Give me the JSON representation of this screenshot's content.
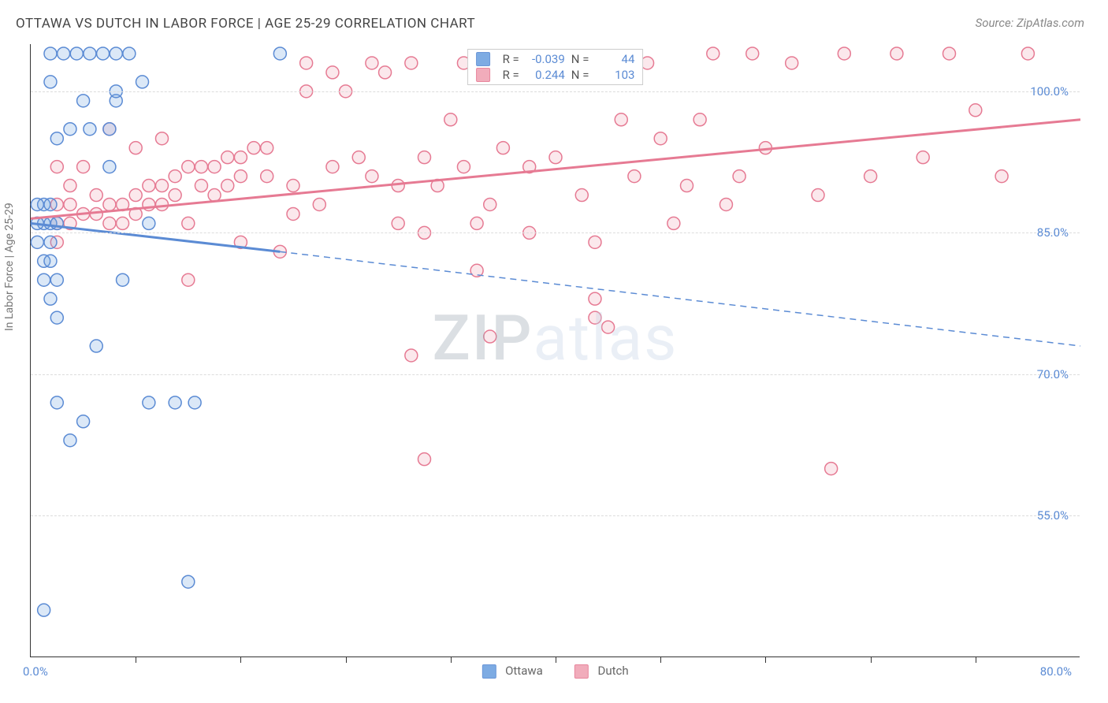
{
  "title": "OTTAWA VS DUTCH IN LABOR FORCE | AGE 25-29 CORRELATION CHART",
  "source": "Source: ZipAtlas.com",
  "watermark": {
    "part1": "ZIP",
    "part2": "atlas"
  },
  "ylabel": "In Labor Force | Age 25-29",
  "legend": {
    "series1": "Ottawa",
    "series2": "Dutch"
  },
  "stats": {
    "series1": {
      "R_label": "R =",
      "R": "-0.039",
      "N_label": "N =",
      "N": "44"
    },
    "series2": {
      "R_label": "R =",
      "R": "0.244",
      "N_label": "N =",
      "N": "103"
    }
  },
  "chart": {
    "type": "scatter-correlation",
    "x_min": 0.0,
    "x_max": 80.0,
    "y_min": 40.0,
    "y_max": 105.0,
    "x_origin_label": "0.0%",
    "x_max_label": "80.0%",
    "y_ticks": [
      55.0,
      70.0,
      85.0,
      100.0
    ],
    "y_tick_labels": [
      "55.0%",
      "70.0%",
      "85.0%",
      "100.0%"
    ],
    "x_minor_ticks": [
      8,
      16,
      24,
      32,
      40,
      48,
      56,
      64,
      72
    ],
    "marker_radius": 8,
    "marker_fill_opacity": 0.25,
    "background_color": "#ffffff",
    "grid_color": "#dcdcdc",
    "axis_color": "#333333",
    "text_color": "#5b8bd4",
    "series": {
      "ottawa": {
        "color": "#6fa3e0",
        "stroke": "#5b8bd4",
        "trend": {
          "x1": 0,
          "y1": 86.0,
          "x2": 19,
          "y2": 83.0,
          "width": 3,
          "dash_from_x": 19,
          "dash_to_x": 80,
          "dash_y": 73.0
        },
        "points": [
          [
            1.5,
            104
          ],
          [
            2.5,
            104
          ],
          [
            3.5,
            104
          ],
          [
            4.5,
            104
          ],
          [
            5.5,
            104
          ],
          [
            6.5,
            104
          ],
          [
            7.5,
            104
          ],
          [
            19,
            104
          ],
          [
            2,
            95
          ],
          [
            4,
            99
          ],
          [
            6.5,
            99
          ],
          [
            1.5,
            101
          ],
          [
            8.5,
            101
          ],
          [
            3,
            96
          ],
          [
            4.5,
            96
          ],
          [
            6,
            96
          ],
          [
            1,
            88
          ],
          [
            1.5,
            88
          ],
          [
            1,
            86
          ],
          [
            1.5,
            86
          ],
          [
            2,
            86
          ],
          [
            1,
            82
          ],
          [
            1.5,
            82
          ],
          [
            1,
            80
          ],
          [
            2,
            80
          ],
          [
            1.5,
            84
          ],
          [
            1.5,
            78
          ],
          [
            2,
            76
          ],
          [
            2,
            67
          ],
          [
            4,
            65
          ],
          [
            9,
            67
          ],
          [
            11,
            67
          ],
          [
            12.5,
            67
          ],
          [
            7,
            80
          ],
          [
            6.5,
            100
          ],
          [
            9,
            86
          ],
          [
            5,
            73
          ],
          [
            6,
            92
          ],
          [
            3,
            63
          ],
          [
            12,
            48
          ],
          [
            1,
            45
          ],
          [
            0.5,
            86
          ],
          [
            0.5,
            88
          ],
          [
            0.5,
            84
          ]
        ]
      },
      "dutch": {
        "color": "#f0a4b4",
        "stroke": "#e67a93",
        "trend": {
          "x1": 0,
          "y1": 86.5,
          "x2": 80,
          "y2": 97.0,
          "width": 3
        },
        "points": [
          [
            2,
            88
          ],
          [
            2,
            86
          ],
          [
            2,
            84
          ],
          [
            3,
            88
          ],
          [
            3,
            86
          ],
          [
            4,
            87
          ],
          [
            5,
            87
          ],
          [
            6,
            88
          ],
          [
            6,
            86
          ],
          [
            7,
            88
          ],
          [
            7,
            86
          ],
          [
            8,
            89
          ],
          [
            8,
            87
          ],
          [
            9,
            90
          ],
          [
            9,
            88
          ],
          [
            10,
            90
          ],
          [
            10,
            88
          ],
          [
            11,
            91
          ],
          [
            11,
            89
          ],
          [
            12,
            86
          ],
          [
            12,
            92
          ],
          [
            13,
            92
          ],
          [
            13,
            90
          ],
          [
            14,
            92
          ],
          [
            14,
            89
          ],
          [
            15,
            93
          ],
          [
            15,
            90
          ],
          [
            16,
            93
          ],
          [
            16,
            91
          ],
          [
            17,
            94
          ],
          [
            18,
            94
          ],
          [
            18,
            91
          ],
          [
            19,
            83
          ],
          [
            20,
            87
          ],
          [
            20,
            90
          ],
          [
            21,
            100
          ],
          [
            22,
            88
          ],
          [
            23,
            102
          ],
          [
            23,
            92
          ],
          [
            24,
            100
          ],
          [
            25,
            93
          ],
          [
            26,
            103
          ],
          [
            26,
            91
          ],
          [
            27,
            102
          ],
          [
            28,
            90
          ],
          [
            28,
            86
          ],
          [
            29,
            103
          ],
          [
            30,
            93
          ],
          [
            30,
            85
          ],
          [
            31,
            90
          ],
          [
            32,
            97
          ],
          [
            33,
            103
          ],
          [
            33,
            92
          ],
          [
            34,
            81
          ],
          [
            35,
            88
          ],
          [
            35,
            74
          ],
          [
            36,
            94
          ],
          [
            37,
            103
          ],
          [
            38,
            92
          ],
          [
            38,
            85
          ],
          [
            40,
            93
          ],
          [
            41,
            103
          ],
          [
            42,
            89
          ],
          [
            43,
            84
          ],
          [
            44,
            75
          ],
          [
            45,
            97
          ],
          [
            46,
            91
          ],
          [
            47,
            103
          ],
          [
            48,
            95
          ],
          [
            49,
            86
          ],
          [
            50,
            90
          ],
          [
            51,
            97
          ],
          [
            52,
            104
          ],
          [
            53,
            88
          ],
          [
            54,
            91
          ],
          [
            55,
            104
          ],
          [
            56,
            94
          ],
          [
            58,
            103
          ],
          [
            60,
            89
          ],
          [
            62,
            104
          ],
          [
            64,
            91
          ],
          [
            66,
            104
          ],
          [
            68,
            93
          ],
          [
            70,
            104
          ],
          [
            72,
            98
          ],
          [
            74,
            91
          ],
          [
            76,
            104
          ],
          [
            29,
            72
          ],
          [
            30,
            61
          ],
          [
            34,
            86
          ],
          [
            43,
            76
          ],
          [
            43,
            78
          ],
          [
            12,
            80
          ],
          [
            16,
            84
          ],
          [
            21,
            103
          ],
          [
            61,
            60
          ],
          [
            2,
            92
          ],
          [
            4,
            92
          ],
          [
            6,
            96
          ],
          [
            8,
            94
          ],
          [
            10,
            95
          ],
          [
            3,
            90
          ],
          [
            5,
            89
          ]
        ]
      }
    }
  }
}
